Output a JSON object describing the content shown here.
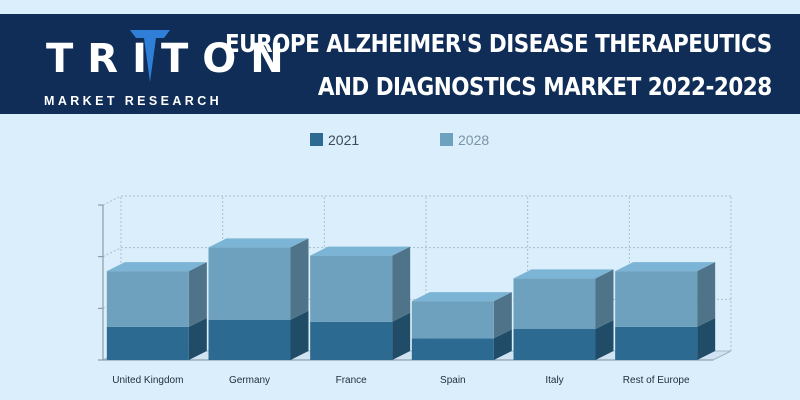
{
  "header": {
    "logo_word": "TRITON",
    "logo_sub": "MARKET RESEARCH",
    "title_line1": "EUROPE ALZHEIMER'S DISEASE THERAPEUTICS",
    "title_line2": "AND DIAGNOSTICS MARKET  2022-2028"
  },
  "colors": {
    "header_bg": "#0f2d57",
    "logo_accent": "#2f7fd9",
    "series_2021": "#2c6a91",
    "series_2028": "#6ea1be",
    "background": "#dbeefb"
  },
  "chart_data": {
    "type": "bar",
    "stacked": true,
    "three_d": true,
    "categories": [
      "United Kingdom",
      "Germany",
      "France",
      "Spain",
      "Italy",
      "Rest of Europe"
    ],
    "series": [
      {
        "name": "2021",
        "values": [
          32,
          39,
          37,
          21,
          30,
          32
        ]
      },
      {
        "name": "2028",
        "values": [
          54,
          70,
          64,
          36,
          49,
          54
        ]
      }
    ],
    "ylim": [
      0,
      150
    ],
    "y_ticks_labeled": false,
    "grid": true,
    "legend_position": "top-center"
  }
}
